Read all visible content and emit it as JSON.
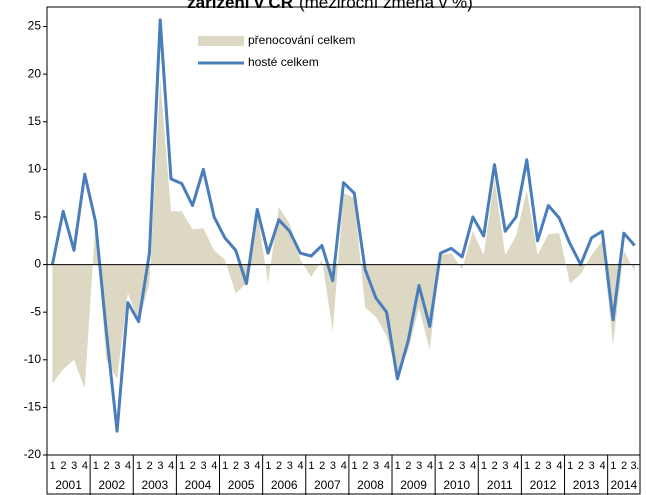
{
  "chart_data": {
    "type": "area-line",
    "title": "zařízení v ČR",
    "subtitle": "(meziroční změna v %)",
    "categories": [
      "1",
      "2",
      "3",
      "4",
      "1",
      "2",
      "3",
      "4",
      "1",
      "2",
      "3",
      "4",
      "1",
      "2",
      "3",
      "4",
      "1",
      "2",
      "3",
      "4",
      "1",
      "2",
      "3",
      "4",
      "1",
      "2",
      "3",
      "4",
      "1",
      "2",
      "3",
      "4",
      "1",
      "2",
      "3",
      "4",
      "1",
      "2",
      "3",
      "4",
      "1",
      "2",
      "3",
      "4",
      "1",
      "2",
      "3",
      "4",
      "1",
      "2",
      "3",
      "4",
      "1",
      "2",
      "3."
    ],
    "years": [
      "2001",
      "2002",
      "2003",
      "2004",
      "2005",
      "2006",
      "2007",
      "2008",
      "2009",
      "2010",
      "2011",
      "2012",
      "2013",
      "2014"
    ],
    "series": [
      {
        "name": "přenocování celkem",
        "kind": "area",
        "color": "#ddd8c4",
        "values": [
          -12.5,
          -11,
          -10,
          -13,
          4.5,
          -10,
          -12,
          -3,
          -6,
          -2,
          19.5,
          5.6,
          5.6,
          3.7,
          3.8,
          1.5,
          0.5,
          -3,
          -2,
          5.5,
          -2,
          6,
          4.3,
          0.5,
          -1.3,
          0.5,
          -7,
          7.5,
          7,
          -4.5,
          -5.5,
          -7.5,
          -11.5,
          -9,
          -4.5,
          -9,
          1,
          1.2,
          -0.5,
          3.5,
          1,
          9,
          1,
          3,
          7.8,
          1,
          3.2,
          3.3,
          -2,
          -1,
          1,
          2.5,
          -8.5,
          1.5,
          -0.8
        ]
      },
      {
        "name": "hosté celkem",
        "kind": "line",
        "color": "#4a7ebb",
        "values": [
          0,
          5.6,
          1.5,
          9.5,
          4.5,
          -7,
          -17.5,
          -4,
          -6,
          1.2,
          25.7,
          9,
          8.5,
          6.2,
          10,
          5,
          2.8,
          1.5,
          -2,
          5.8,
          1.2,
          4.7,
          3.5,
          1.2,
          0.9,
          2,
          -1.7,
          8.6,
          7.5,
          -0.5,
          -3.5,
          -5,
          -12,
          -8,
          -2.2,
          -6.5,
          1.2,
          1.7,
          0.8,
          5,
          3,
          10.5,
          3.5,
          5,
          11,
          2.5,
          6.2,
          4.9,
          2.2,
          0,
          2.8,
          3.5,
          -5.8,
          3.3,
          2
        ]
      }
    ],
    "ylim": [
      -20,
      26
    ],
    "yticks": [
      -20,
      -15,
      -10,
      -5,
      0,
      5,
      10,
      15,
      20,
      25
    ],
    "legend": "top-center"
  }
}
